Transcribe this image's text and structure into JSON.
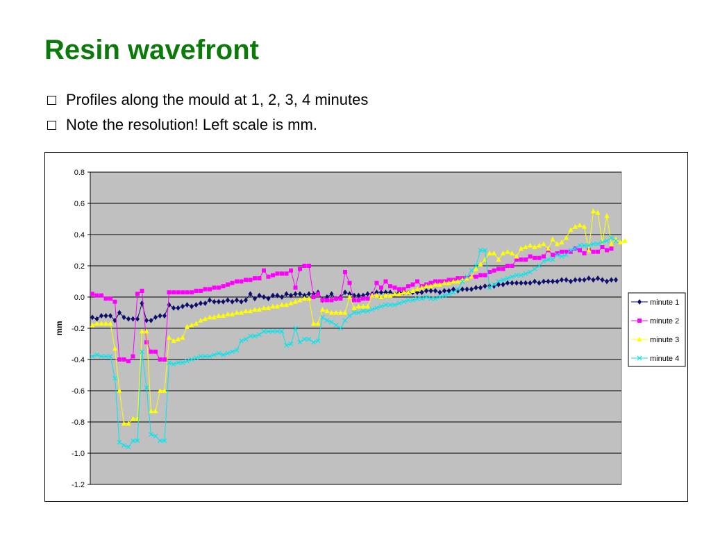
{
  "slide": {
    "title": "Resin wavefront",
    "bullets": [
      "Profiles along the mould at 1, 2, 3, 4 minutes",
      "Note the resolution!  Left scale is mm."
    ]
  },
  "chart_data": {
    "type": "line",
    "title": "",
    "xlabel": "",
    "ylabel": "mm",
    "ylim": [
      -1.2,
      0.8
    ],
    "yticks": [
      "0.8",
      "0.6",
      "0.4",
      "0.2",
      "0.0",
      "-0.2",
      "-0.4",
      "-0.6",
      "-0.8",
      "-1.0",
      "-1.2"
    ],
    "grid": true,
    "plot_background": "#c0c0c0",
    "legend_position": "right",
    "series": [
      {
        "name": "minute 1",
        "color": "#0d0d6b",
        "marker": "diamond",
        "values": [
          -0.13,
          -0.14,
          -0.12,
          -0.12,
          -0.12,
          -0.15,
          -0.1,
          -0.13,
          -0.14,
          -0.14,
          -0.14,
          -0.04,
          -0.15,
          -0.15,
          -0.13,
          -0.12,
          -0.12,
          -0.05,
          -0.07,
          -0.07,
          -0.06,
          -0.05,
          -0.06,
          -0.05,
          -0.04,
          -0.04,
          -0.02,
          -0.03,
          -0.03,
          -0.03,
          -0.02,
          -0.03,
          -0.02,
          -0.03,
          -0.02,
          0.02,
          -0.01,
          0.01,
          0,
          -0.01,
          0.01,
          0.01,
          0,
          0.02,
          0.01,
          0.02,
          0.02,
          0.01,
          0.02,
          0.02,
          0.03,
          -0.02,
          0,
          0.02,
          -0.01,
          0,
          0.03,
          0.02,
          0.01,
          0.01,
          0.01,
          0.02,
          0.02,
          0.03,
          0.03,
          0.03,
          0.03,
          0.02,
          0.03,
          0.03,
          0.03,
          0.03,
          0.03,
          0.03,
          0.04,
          0.04,
          0.04,
          0.03,
          0.04,
          0.04,
          0.05,
          0.04,
          0.05,
          0.05,
          0.05,
          0.06,
          0.06,
          0.07,
          0.07,
          0.07,
          0.08,
          0.08,
          0.09,
          0.09,
          0.09,
          0.09,
          0.09,
          0.09,
          0.1,
          0.09,
          0.1,
          0.1,
          0.1,
          0.1,
          0.11,
          0.11,
          0.1,
          0.11,
          0.11,
          0.11,
          0.12,
          0.11,
          0.12,
          0.11,
          0.1,
          0.11,
          0.11
        ]
      },
      {
        "name": "minute 2",
        "color": "#ff00ff",
        "marker": "square",
        "values": [
          0.02,
          0.01,
          0.01,
          -0.01,
          -0.01,
          -0.03,
          -0.4,
          -0.4,
          -0.41,
          -0.38,
          0.02,
          0.04,
          -0.29,
          -0.35,
          -0.35,
          -0.4,
          -0.4,
          0.03,
          0.03,
          0.03,
          0.03,
          0.03,
          0.03,
          0.04,
          0.04,
          0.05,
          0.05,
          0.06,
          0.06,
          0.07,
          0.08,
          0.09,
          0.1,
          0.1,
          0.11,
          0.11,
          0.12,
          0.12,
          0.17,
          0.13,
          0.14,
          0.15,
          0.15,
          0.15,
          0.17,
          0.06,
          0.18,
          0.2,
          0.2,
          0,
          0.02,
          -0.02,
          -0.02,
          -0.02,
          -0.01,
          -0.01,
          0.16,
          0.09,
          -0.02,
          -0.02,
          -0.01,
          -0.01,
          0.01,
          0.09,
          0.06,
          0.1,
          0.07,
          0.06,
          0.05,
          0.05,
          0.07,
          0.08,
          0.1,
          0.07,
          0.08,
          0.09,
          0.1,
          0.1,
          0.1,
          0.11,
          0.11,
          0.12,
          0.12,
          0.12,
          0.13,
          0.13,
          0.14,
          0.14,
          0.16,
          0.17,
          0.18,
          0.18,
          0.2,
          0.2,
          0.24,
          0.24,
          0.24,
          0.26,
          0.25,
          0.25,
          0.26,
          0.3,
          0.27,
          0.28,
          0.29,
          0.29,
          0.29,
          0.31,
          0.3,
          0.28,
          0.3,
          0.29,
          0.29,
          0.32,
          0.3,
          0.31
        ]
      },
      {
        "name": "minute 3",
        "color": "#ffff00",
        "marker": "triangle",
        "values": [
          -0.18,
          -0.17,
          -0.17,
          -0.17,
          -0.17,
          -0.33,
          -0.6,
          -0.81,
          -0.81,
          -0.78,
          -0.78,
          -0.22,
          -0.22,
          -0.73,
          -0.73,
          -0.6,
          -0.6,
          -0.26,
          -0.28,
          -0.27,
          -0.26,
          -0.19,
          -0.18,
          -0.17,
          -0.15,
          -0.14,
          -0.13,
          -0.13,
          -0.12,
          -0.12,
          -0.11,
          -0.11,
          -0.1,
          -0.1,
          -0.09,
          -0.09,
          -0.08,
          -0.08,
          -0.07,
          -0.07,
          -0.06,
          -0.06,
          -0.05,
          -0.05,
          -0.04,
          -0.03,
          -0.02,
          -0.01,
          -0.01,
          -0.17,
          -0.17,
          -0.08,
          -0.09,
          -0.1,
          -0.1,
          -0.1,
          -0.1,
          0,
          -0.07,
          -0.06,
          -0.06,
          -0.06,
          0.01,
          0.01,
          0,
          0.01,
          0.01,
          0.02,
          0.02,
          0.03,
          0.03,
          0.04,
          0.05,
          0.06,
          0.07,
          0.07,
          0.08,
          0.08,
          0.09,
          0.09,
          0.1,
          0.1,
          0.11,
          0.12,
          0.13,
          0.18,
          0.21,
          0.24,
          0.28,
          0.28,
          0.24,
          0.28,
          0.29,
          0.28,
          0.26,
          0.31,
          0.32,
          0.33,
          0.32,
          0.33,
          0.34,
          0.31,
          0.37,
          0.34,
          0.35,
          0.38,
          0.43,
          0.45,
          0.46,
          0.45,
          0.3,
          0.55,
          0.54,
          0.35,
          0.52,
          0.34,
          0.37,
          0.35,
          0.36
        ]
      },
      {
        "name": "minute 4",
        "color": "#00e5ee",
        "marker": "cross",
        "values": [
          -0.38,
          -0.37,
          -0.38,
          -0.38,
          -0.38,
          -0.52,
          -0.93,
          -0.95,
          -0.96,
          -0.92,
          -0.92,
          -0.35,
          -0.58,
          -0.88,
          -0.89,
          -0.92,
          -0.92,
          -0.42,
          -0.43,
          -0.42,
          -0.42,
          -0.41,
          -0.4,
          -0.39,
          -0.38,
          -0.38,
          -0.38,
          -0.37,
          -0.36,
          -0.37,
          -0.36,
          -0.35,
          -0.34,
          -0.28,
          -0.27,
          -0.25,
          -0.25,
          -0.24,
          -0.22,
          -0.22,
          -0.22,
          -0.22,
          -0.22,
          -0.31,
          -0.3,
          -0.2,
          -0.29,
          -0.27,
          -0.27,
          -0.29,
          -0.28,
          -0.13,
          -0.15,
          -0.16,
          -0.18,
          -0.2,
          -0.15,
          -0.12,
          -0.1,
          -0.1,
          -0.09,
          -0.09,
          -0.08,
          -0.07,
          -0.06,
          -0.05,
          -0.05,
          -0.05,
          -0.04,
          -0.03,
          -0.02,
          -0.02,
          -0.01,
          -0.01,
          0,
          -0.01,
          -0.01,
          0,
          0.01,
          0.02,
          0.03,
          0.05,
          0.1,
          0.13,
          0.17,
          0.2,
          0.3,
          0.3,
          0.06,
          0.08,
          0.1,
          0.11,
          0.12,
          0.13,
          0.14,
          0.14,
          0.15,
          0.16,
          0.18,
          0.2,
          0.23,
          0.24,
          0.24,
          0.27,
          0.26,
          0.27,
          0.3,
          0.31,
          0.33,
          0.33,
          0.33,
          0.34,
          0.34,
          0.35,
          0.36,
          0.38,
          0.36
        ]
      }
    ]
  }
}
